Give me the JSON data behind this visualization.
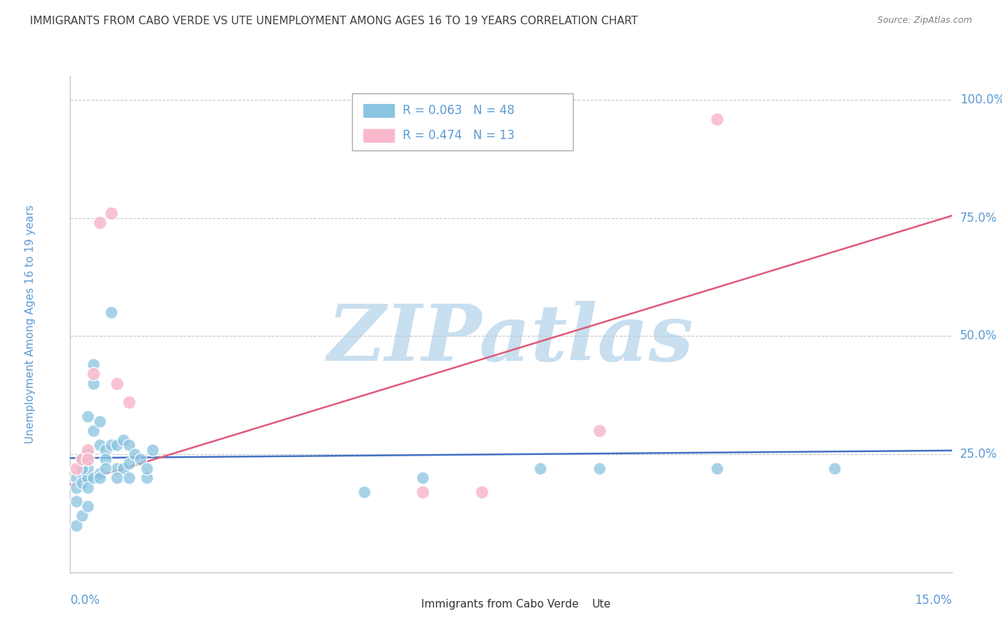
{
  "title": "IMMIGRANTS FROM CABO VERDE VS UTE UNEMPLOYMENT AMONG AGES 16 TO 19 YEARS CORRELATION CHART",
  "source": "Source: ZipAtlas.com",
  "ylabel": "Unemployment Among Ages 16 to 19 years",
  "xlim": [
    0.0,
    0.15
  ],
  "ylim": [
    0.0,
    1.05
  ],
  "yticks": [
    0.25,
    0.5,
    0.75,
    1.0
  ],
  "ytick_labels": [
    "25.0%",
    "50.0%",
    "75.0%",
    "100.0%"
  ],
  "xtick_left": "0.0%",
  "xtick_right": "15.0%",
  "watermark": "ZIPatlas",
  "legend_r1": "R = 0.063   N = 48",
  "legend_r2": "R = 0.474   N = 13",
  "legend_label1": "Immigrants from Cabo Verde",
  "legend_label2": "Ute",
  "cabo_verde_x": [
    0.001,
    0.001,
    0.001,
    0.001,
    0.002,
    0.002,
    0.002,
    0.002,
    0.002,
    0.003,
    0.003,
    0.003,
    0.003,
    0.003,
    0.004,
    0.004,
    0.004,
    0.005,
    0.005,
    0.005,
    0.006,
    0.006,
    0.007,
    0.007,
    0.008,
    0.008,
    0.009,
    0.009,
    0.01,
    0.01,
    0.011,
    0.012,
    0.013,
    0.013,
    0.014,
    0.002,
    0.003,
    0.004,
    0.005,
    0.006,
    0.008,
    0.01,
    0.05,
    0.06,
    0.08,
    0.09,
    0.11,
    0.13
  ],
  "cabo_verde_y": [
    0.2,
    0.18,
    0.15,
    0.1,
    0.21,
    0.19,
    0.23,
    0.24,
    0.12,
    0.25,
    0.2,
    0.18,
    0.22,
    0.14,
    0.4,
    0.3,
    0.2,
    0.27,
    0.21,
    0.2,
    0.26,
    0.24,
    0.55,
    0.27,
    0.27,
    0.22,
    0.28,
    0.22,
    0.27,
    0.23,
    0.25,
    0.24,
    0.2,
    0.22,
    0.26,
    0.22,
    0.33,
    0.44,
    0.32,
    0.22,
    0.2,
    0.2,
    0.17,
    0.2,
    0.22,
    0.22,
    0.22,
    0.22
  ],
  "ute_x": [
    0.001,
    0.002,
    0.003,
    0.003,
    0.004,
    0.005,
    0.007,
    0.008,
    0.01,
    0.06,
    0.07,
    0.09,
    0.11
  ],
  "ute_y": [
    0.22,
    0.24,
    0.26,
    0.24,
    0.42,
    0.74,
    0.76,
    0.4,
    0.36,
    0.17,
    0.17,
    0.3,
    0.96
  ],
  "cabo_line_x": [
    0.0,
    0.15
  ],
  "cabo_line_y": [
    0.242,
    0.258
  ],
  "ute_line_x": [
    0.0,
    0.15
  ],
  "ute_line_y": [
    0.185,
    0.755
  ],
  "scatter_blue": "#89c4e1",
  "scatter_pink": "#f9b8cb",
  "line_blue": "#4472c4",
  "line_pink": "#e05a7a",
  "grid_color": "#c8c8c8",
  "title_color": "#404040",
  "source_color": "#808080",
  "axis_color": "#5b9bd5",
  "text_black": "#333333",
  "watermark_color": "#c8dff0",
  "background_color": "#ffffff",
  "legend_box_color": "#f0f0f0",
  "legend_border_color": "#aaaaaa"
}
